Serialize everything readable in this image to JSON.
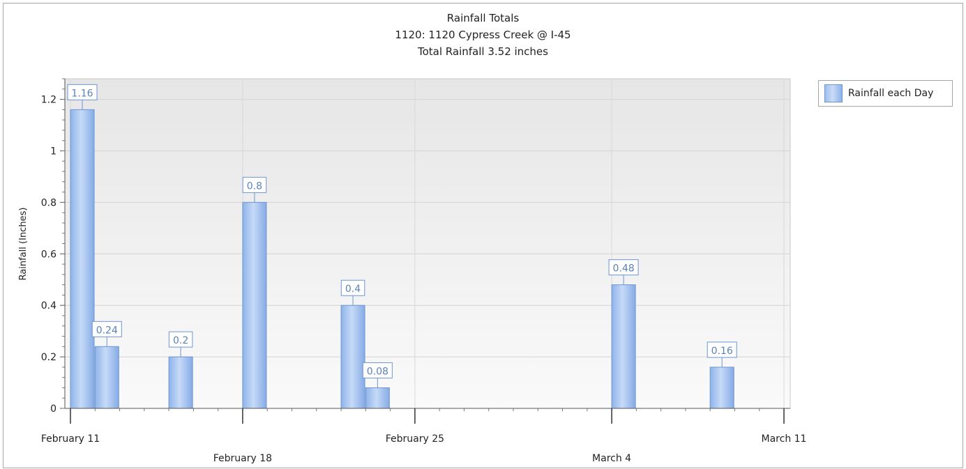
{
  "chart_data": {
    "type": "bar",
    "title": "Rainfall Totals",
    "subtitle": "1120: 1120 Cypress Creek @ I-45",
    "subtitle2": "Total Rainfall 3.52 inches",
    "ylabel": "Rainfall (Inches)",
    "xlabel": "",
    "ylim": [
      0,
      1.28
    ],
    "xlim": [
      "2024-02-11",
      "2024-03-11"
    ],
    "yticks": [
      0,
      0.2,
      0.4,
      0.6,
      0.8,
      1,
      1.2
    ],
    "yticks_labels": [
      "0",
      "0.2",
      "0.4",
      "0.6",
      "0.8",
      "1",
      "1.2"
    ],
    "xticks": [
      "2024-02-11",
      "2024-02-18",
      "2024-02-25",
      "2024-03-04",
      "2024-03-11"
    ],
    "xticks_labels": [
      "February 11",
      "February 18",
      "February 25",
      "March 4",
      "March 11"
    ],
    "grid": true,
    "legend": "top-right",
    "series": [
      {
        "name": "Rainfall each Day",
        "color": "#9dbfee",
        "points": [
          {
            "date": "2024-02-11",
            "value": 1.16,
            "label": "1.16"
          },
          {
            "date": "2024-02-12",
            "value": 0.24,
            "label": "0.24"
          },
          {
            "date": "2024-02-15",
            "value": 0.2,
            "label": "0.2"
          },
          {
            "date": "2024-02-18",
            "value": 0.8,
            "label": "0.8"
          },
          {
            "date": "2024-02-22",
            "value": 0.4,
            "label": "0.4"
          },
          {
            "date": "2024-02-23",
            "value": 0.08,
            "label": "0.08"
          },
          {
            "date": "2024-03-04",
            "value": 0.48,
            "label": "0.48"
          },
          {
            "date": "2024-03-08",
            "value": 0.16,
            "label": "0.16"
          }
        ]
      }
    ]
  }
}
